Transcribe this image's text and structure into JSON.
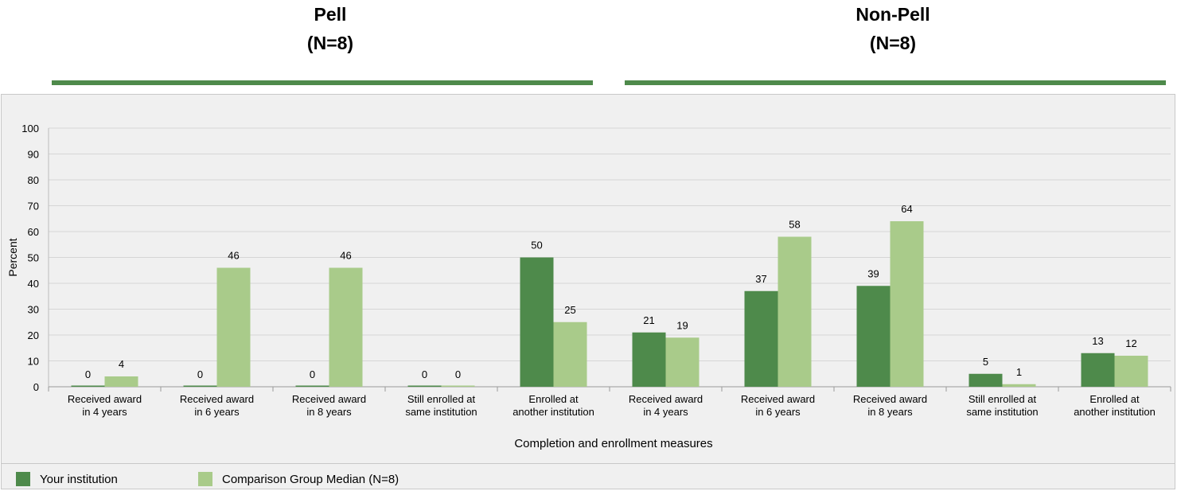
{
  "header": {
    "groups": [
      {
        "name": "Pell",
        "n": "(N=8)"
      },
      {
        "name": "Non-Pell",
        "n": "(N=8)"
      }
    ]
  },
  "colors": {
    "your_institution": "#4e8a4b",
    "comparison": "#a9cb8a",
    "header_line": "#4e8a4b",
    "panel_bg": "#f0f0f0",
    "grid": "#d6d6d6"
  },
  "legend": {
    "items": [
      {
        "label": "Your institution",
        "color": "#4e8a4b"
      },
      {
        "label": "Comparison Group Median (N=8)",
        "color": "#a9cb8a"
      }
    ]
  },
  "chart_data": {
    "type": "bar",
    "title": "",
    "xlabel": "Completion and enrollment measures",
    "ylabel": "Percent",
    "ylim": [
      0,
      100
    ],
    "yticks": [
      0,
      10,
      20,
      30,
      40,
      50,
      60,
      70,
      80,
      90,
      100
    ],
    "grid": true,
    "legend_position": "bottom-left",
    "categories": [
      [
        "Received award",
        "in 4 years"
      ],
      [
        "Received award",
        "in 6 years"
      ],
      [
        "Received award",
        "in 8 years"
      ],
      [
        "Still enrolled at",
        "same institution"
      ],
      [
        "Enrolled at",
        "another institution"
      ],
      [
        "Received award",
        "in 4 years"
      ],
      [
        "Received award",
        "in 6 years"
      ],
      [
        "Received award",
        "in 8 years"
      ],
      [
        "Still enrolled at",
        "same institution"
      ],
      [
        "Enrolled at",
        "another institution"
      ]
    ],
    "series": [
      {
        "name": "Your institution",
        "values": [
          0,
          0,
          0,
          0,
          50,
          21,
          37,
          39,
          5,
          13
        ]
      },
      {
        "name": "Comparison Group Median (N=8)",
        "values": [
          4,
          46,
          46,
          0,
          25,
          19,
          58,
          64,
          1,
          12
        ]
      }
    ]
  }
}
